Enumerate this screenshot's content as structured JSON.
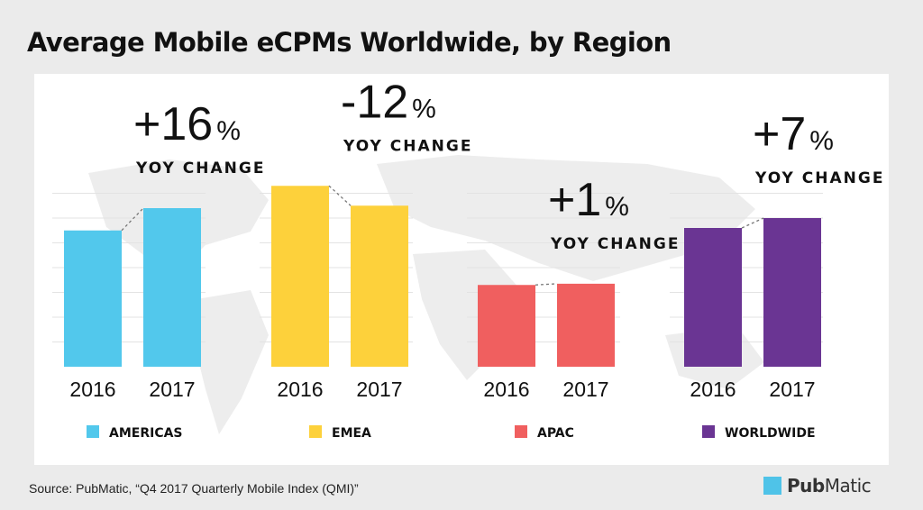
{
  "title": "Average Mobile eCPMs Worldwide, by Region",
  "source": "Source: PubMatic, “Q4 2017 Quarterly Mobile Index (QMI)”",
  "logo": {
    "text_bold": "Pub",
    "text_rest": "Matic",
    "color": "#4fc3e8"
  },
  "change_caption": "YOY CHANGE",
  "pct_symbol": "%",
  "chart_data": {
    "type": "bar",
    "categories": [
      "2016",
      "2017"
    ],
    "ylim": [
      0,
      100
    ],
    "grid": true,
    "legend_position": "bottom",
    "series": [
      {
        "name": "AMERICAS",
        "color": "#52c8ec",
        "values": [
          55,
          64
        ],
        "change": "+16"
      },
      {
        "name": "EMEA",
        "color": "#fdd13b",
        "values": [
          73,
          65
        ],
        "change": "-12"
      },
      {
        "name": "APAC",
        "color": "#f05f5f",
        "values": [
          33,
          33.5
        ],
        "change": "+1"
      },
      {
        "name": "WORLDWIDE",
        "color": "#6a3593",
        "values": [
          56,
          60
        ],
        "change": "+7"
      }
    ]
  }
}
